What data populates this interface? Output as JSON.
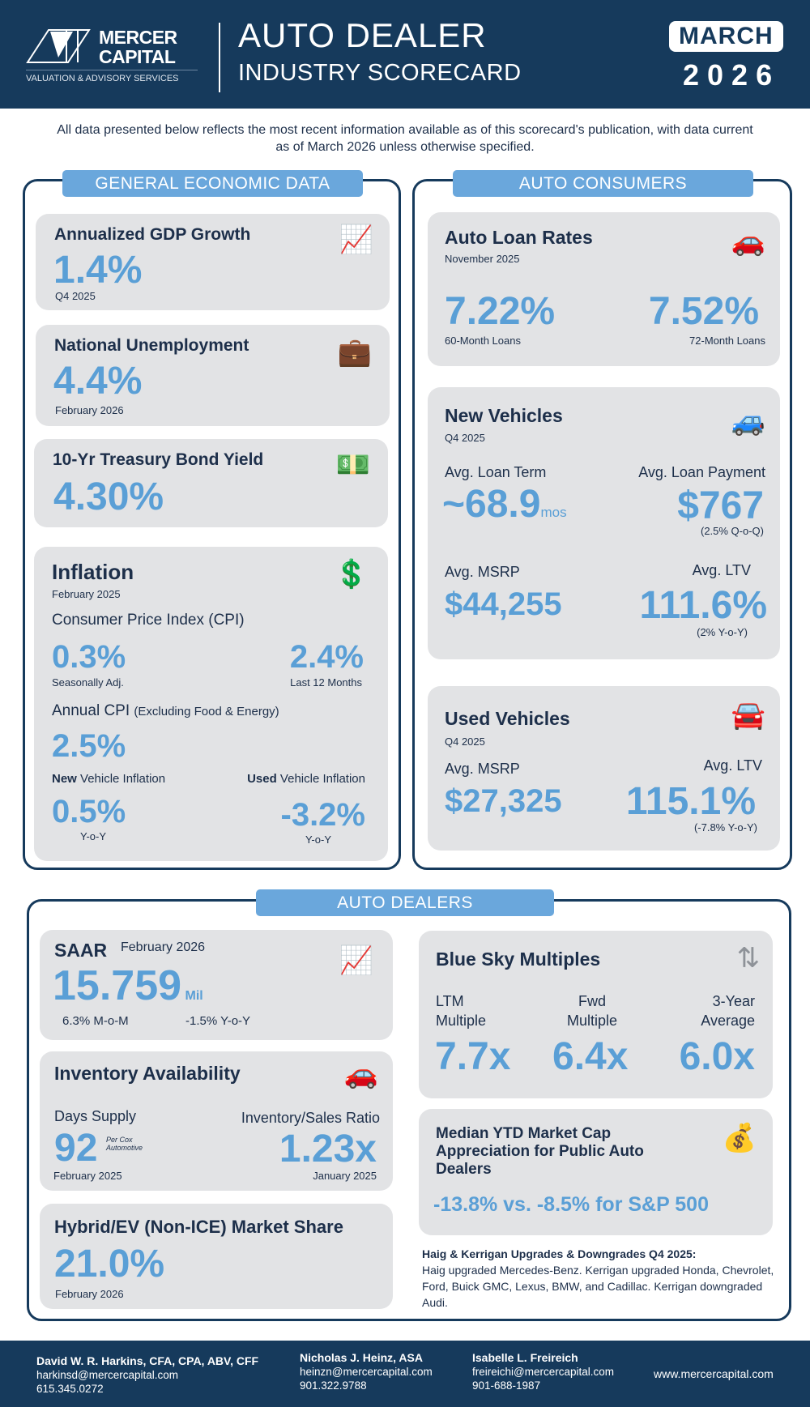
{
  "header": {
    "logo_line1": "MERCER",
    "logo_line2": "CAPITAL",
    "logo_tagline": "VALUATION & ADVISORY SERVICES",
    "title_line1": "AUTO DEALER",
    "title_line2": "INDUSTRY SCORECARD",
    "month": "MARCH",
    "year": "2026"
  },
  "intro": "All data presented below reflects the most recent information available as of this scorecard's publication, with data current as of March 2026 unless otherwise specified.",
  "general": {
    "label": "GENERAL ECONOMIC DATA",
    "gdp": {
      "title": "Annualized GDP Growth",
      "value": "1.4%",
      "period": "Q4 2025"
    },
    "unemployment": {
      "title": "National Unemployment",
      "value": "4.4%",
      "period": "February 2026"
    },
    "treasury": {
      "title": "10-Yr Treasury Bond Yield",
      "value": "4.30%"
    },
    "inflation": {
      "title": "Inflation",
      "period": "February 2025",
      "cpi_label": "Consumer Price Index (CPI)",
      "cpi_sa": "0.3%",
      "cpi_sa_label": "Seasonally Adj.",
      "cpi_12": "2.4%",
      "cpi_12_label": "Last 12 Months",
      "core_label": "Annual CPI",
      "core_sub": "(Excluding Food & Energy)",
      "core_value": "2.5%",
      "new_bold": "New",
      "new_label": "Vehicle Inflation",
      "new_value": "0.5%",
      "new_sub": "Y-o-Y",
      "used_bold": "Used",
      "used_label": "Vehicle Inflation",
      "used_value": "-3.2%",
      "used_sub": "Y-o-Y"
    }
  },
  "consumers": {
    "label": "AUTO CONSUMERS",
    "loan_rates": {
      "title": "Auto Loan Rates",
      "period": "November 2025",
      "rate60": "7.22%",
      "rate60_label": "60-Month Loans",
      "rate72": "7.52%",
      "rate72_label": "72-Month Loans"
    },
    "new_vehicles": {
      "title": "New Vehicles",
      "period": "Q4 2025",
      "term_label": "Avg. Loan Term",
      "term_value": "~68.9",
      "term_unit": "mos",
      "payment_label": "Avg. Loan Payment",
      "payment_value": "$767",
      "payment_sub": "(2.5% Q-o-Q)",
      "msrp_label": "Avg. MSRP",
      "msrp_value": "$44,255",
      "ltv_label": "Avg. LTV",
      "ltv_value": "111.6%",
      "ltv_sub": "(2% Y-o-Y)"
    },
    "used_vehicles": {
      "title": "Used Vehicles",
      "period": "Q4 2025",
      "msrp_label": "Avg. MSRP",
      "msrp_value": "$27,325",
      "ltv_label": "Avg. LTV",
      "ltv_value": "115.1%",
      "ltv_sub": "(-7.8% Y-o-Y)"
    }
  },
  "dealers": {
    "label": "AUTO DEALERS",
    "saar": {
      "title": "SAAR",
      "period": "February 2026",
      "value": "15.759",
      "unit": "Mil",
      "mom": "6.3% M-o-M",
      "yoy": "-1.5% Y-o-Y"
    },
    "inventory": {
      "title": "Inventory Availability",
      "days_label": "Days Supply",
      "days_value": "92",
      "days_note": "Per Cox Automotive",
      "days_period": "February 2025",
      "ratio_label": "Inventory/Sales Ratio",
      "ratio_value": "1.23x",
      "ratio_period": "January 2025"
    },
    "hybrid": {
      "title": "Hybrid/EV (Non-ICE) Market Share",
      "value": "21.0%",
      "period": "February 2026"
    },
    "blue_sky": {
      "title": "Blue Sky Multiples",
      "cols": [
        {
          "label1": "LTM",
          "label2": "Multiple",
          "value": "7.7x"
        },
        {
          "label1": "Fwd",
          "label2": "Multiple",
          "value": "6.4x"
        },
        {
          "label1": "3-Year",
          "label2": "Average",
          "value": "6.0x"
        }
      ]
    },
    "market_cap": {
      "title": "Median YTD Market Cap Appreciation for Public Auto Dealers",
      "value": "-13.8% vs. -8.5% for S&P 500"
    },
    "haig": {
      "title": "Haig & Kerrigan Upgrades & Downgrades Q4 2025:",
      "text": "Haig upgraded Mercedes-Benz. Kerrigan upgraded Honda, Chevrolet, Ford, Buick GMC, Lexus, BMW, and Cadillac. Kerrigan downgraded Audi."
    }
  },
  "footer": {
    "contacts": [
      {
        "name": "David W. R. Harkins, CFA, CPA, ABV, CFF",
        "email": "harkinsd@mercercapital.com",
        "phone": "615.345.0272"
      },
      {
        "name": "Nicholas J. Heinz, ASA",
        "email": "heinzn@mercercapital.com",
        "phone": "901.322.9788"
      },
      {
        "name": "Isabelle L. Freireich",
        "email": "freireichi@mercercapital.com",
        "phone": "901-688-1987"
      }
    ],
    "website": "www.mercercapital.com"
  },
  "colors": {
    "navy": "#163a5c",
    "accent": "#5a9fd6",
    "card": "#e2e3e5"
  }
}
